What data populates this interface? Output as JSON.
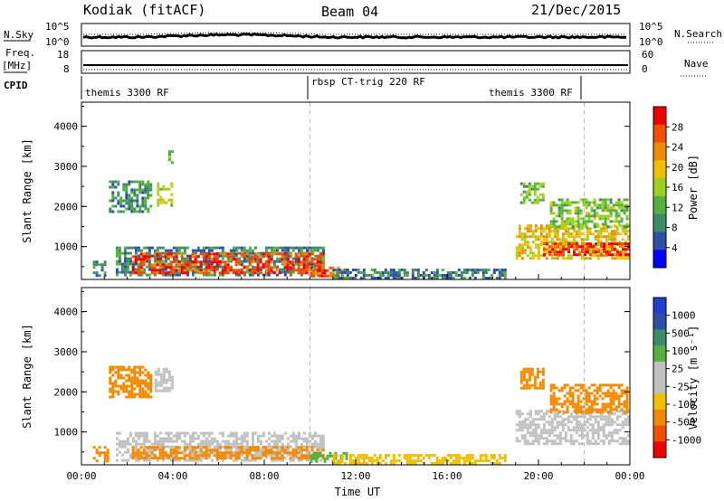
{
  "header": {
    "station": "Kodiak (fitACF)",
    "beam": "Beam 04",
    "date": "21/Dec/2015"
  },
  "top_panels": {
    "nsky_label": "N.Sky",
    "nsky_ticks": [
      "10^5",
      "10^0"
    ],
    "nsearch_label": "N.Search",
    "nsearch_ticks": [
      "10^5",
      "10^0"
    ],
    "freq_label_1": "Freq.",
    "freq_label_2": "[MHz]",
    "freq_ticks": [
      "18",
      "8"
    ],
    "nave_label": "Nave",
    "nave_ticks": [
      "60",
      "0"
    ],
    "cpid_label": "CPID",
    "cpid_segments": [
      "themis 3300 RF",
      "rbsp CT-trig 220 RF",
      "themis 3300 RF"
    ]
  },
  "colors": {
    "power_scale": [
      "#0000ff",
      "#2e4fa8",
      "#3e8a6a",
      "#55b040",
      "#9ed020",
      "#f0c000",
      "#f28a00",
      "#ef5000",
      "#ee0000"
    ],
    "velocity_scale": [
      "#ee0000",
      "#ef5000",
      "#f28a00",
      "#f0c000",
      "#c0c0c0",
      "#c0c0c0",
      "#55b040",
      "#3e8a6a",
      "#2e4fa8",
      "#1e3fd0"
    ]
  },
  "chart_data": [
    {
      "type": "heatmap",
      "name": "power-panel",
      "ylabel": "Slant Range [km]",
      "y_ticks": [
        "1000",
        "2000",
        "3000",
        "4000"
      ],
      "y_tick_values": [
        1000,
        2000,
        3000,
        4000
      ],
      "ylim": [
        180,
        4600
      ],
      "xlim": [
        0,
        24
      ],
      "colorbar_label": "Power [dB]",
      "colorbar_ticks": [
        "4",
        "8",
        "12",
        "16",
        "20",
        "24",
        "28"
      ],
      "colorbar_range": [
        0,
        32
      ],
      "regions": [
        {
          "t0": 0.5,
          "t1": 1.0,
          "r0": 300,
          "r1": 650,
          "val": 8
        },
        {
          "t0": 1.2,
          "t1": 3.0,
          "r0": 1850,
          "r1": 2650,
          "val": 10
        },
        {
          "t0": 3.3,
          "t1": 4.0,
          "r0": 2000,
          "r1": 2600,
          "val": 17
        },
        {
          "t0": 3.8,
          "t1": 4.0,
          "r0": 3100,
          "r1": 3400,
          "val": 12
        },
        {
          "t0": 1.5,
          "t1": 10.6,
          "r0": 300,
          "r1": 1000,
          "val": 9
        },
        {
          "t0": 2.2,
          "t1": 10.6,
          "r0": 350,
          "r1": 850,
          "val": 27
        },
        {
          "t0": 10.0,
          "t1": 11.6,
          "r0": 250,
          "r1": 500,
          "val": 26
        },
        {
          "t0": 11.0,
          "t1": 18.5,
          "r0": 220,
          "r1": 450,
          "val": 8
        },
        {
          "t0": 19.0,
          "t1": 23.9,
          "r0": 700,
          "r1": 1550,
          "val": 19
        },
        {
          "t0": 20.2,
          "t1": 23.9,
          "r0": 800,
          "r1": 1100,
          "val": 28
        },
        {
          "t0": 19.2,
          "t1": 20.2,
          "r0": 2100,
          "r1": 2600,
          "val": 14
        },
        {
          "t0": 20.5,
          "t1": 23.9,
          "r0": 1500,
          "r1": 2200,
          "val": 14
        }
      ]
    },
    {
      "type": "heatmap",
      "name": "velocity-panel",
      "ylabel": "Slant Range [km]",
      "y_ticks": [
        "1000",
        "2000",
        "3000",
        "4000"
      ],
      "y_tick_values": [
        1000,
        2000,
        3000,
        4000
      ],
      "ylim": [
        180,
        4600
      ],
      "xlim": [
        0,
        24
      ],
      "xlabel": "Time UT",
      "x_ticks": [
        "00:00",
        "04:00",
        "08:00",
        "12:00",
        "16:00",
        "20:00",
        "00:00"
      ],
      "x_tick_values": [
        0,
        4,
        8,
        12,
        16,
        20,
        24
      ],
      "colorbar_label": "Velocity [m s⁻¹]",
      "colorbar_ticks": [
        "1000",
        "500",
        "100",
        "25",
        "-25",
        "-100",
        "-500",
        "-1000"
      ],
      "regions": [
        {
          "t0": 0.5,
          "t1": 1.2,
          "r0": 300,
          "r1": 650,
          "val": -120
        },
        {
          "t0": 1.2,
          "t1": 3.0,
          "r0": 1850,
          "r1": 2650,
          "val": -120
        },
        {
          "t0": 3.2,
          "t1": 4.0,
          "r0": 2000,
          "r1": 2600,
          "val": 0
        },
        {
          "t0": 1.5,
          "t1": 10.6,
          "r0": 300,
          "r1": 1000,
          "val": 0
        },
        {
          "t0": 2.2,
          "t1": 10.6,
          "r0": 350,
          "r1": 650,
          "val": -120
        },
        {
          "t0": 10.0,
          "t1": 11.6,
          "r0": 250,
          "r1": 500,
          "val": 50
        },
        {
          "t0": 11.0,
          "t1": 18.5,
          "r0": 220,
          "r1": 450,
          "val": -60
        },
        {
          "t0": 19.0,
          "t1": 23.9,
          "r0": 700,
          "r1": 1550,
          "val": 0
        },
        {
          "t0": 19.2,
          "t1": 20.2,
          "r0": 2100,
          "r1": 2600,
          "val": -200
        },
        {
          "t0": 20.5,
          "t1": 23.9,
          "r0": 1500,
          "r1": 2200,
          "val": -200
        }
      ]
    }
  ]
}
